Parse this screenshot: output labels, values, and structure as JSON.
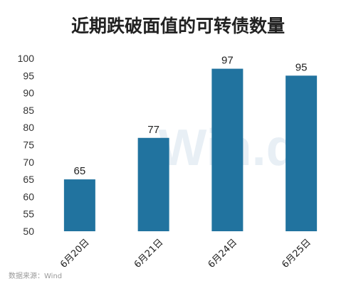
{
  "chart_data": {
    "type": "bar",
    "title": "近期跌破面值的可转债数量",
    "categories": [
      "6月20日",
      "6月21日",
      "6月24日",
      "6月25日"
    ],
    "values": [
      65,
      77,
      97,
      95
    ],
    "ylim": [
      50,
      100
    ],
    "yticks": [
      50,
      55,
      60,
      65,
      70,
      75,
      80,
      85,
      90,
      95,
      100
    ],
    "xlabel": "",
    "ylabel": "",
    "grid": false,
    "legend": "none",
    "bar_color": "#21739f",
    "source": "数据来源：Wind",
    "watermark": "Win.d"
  }
}
